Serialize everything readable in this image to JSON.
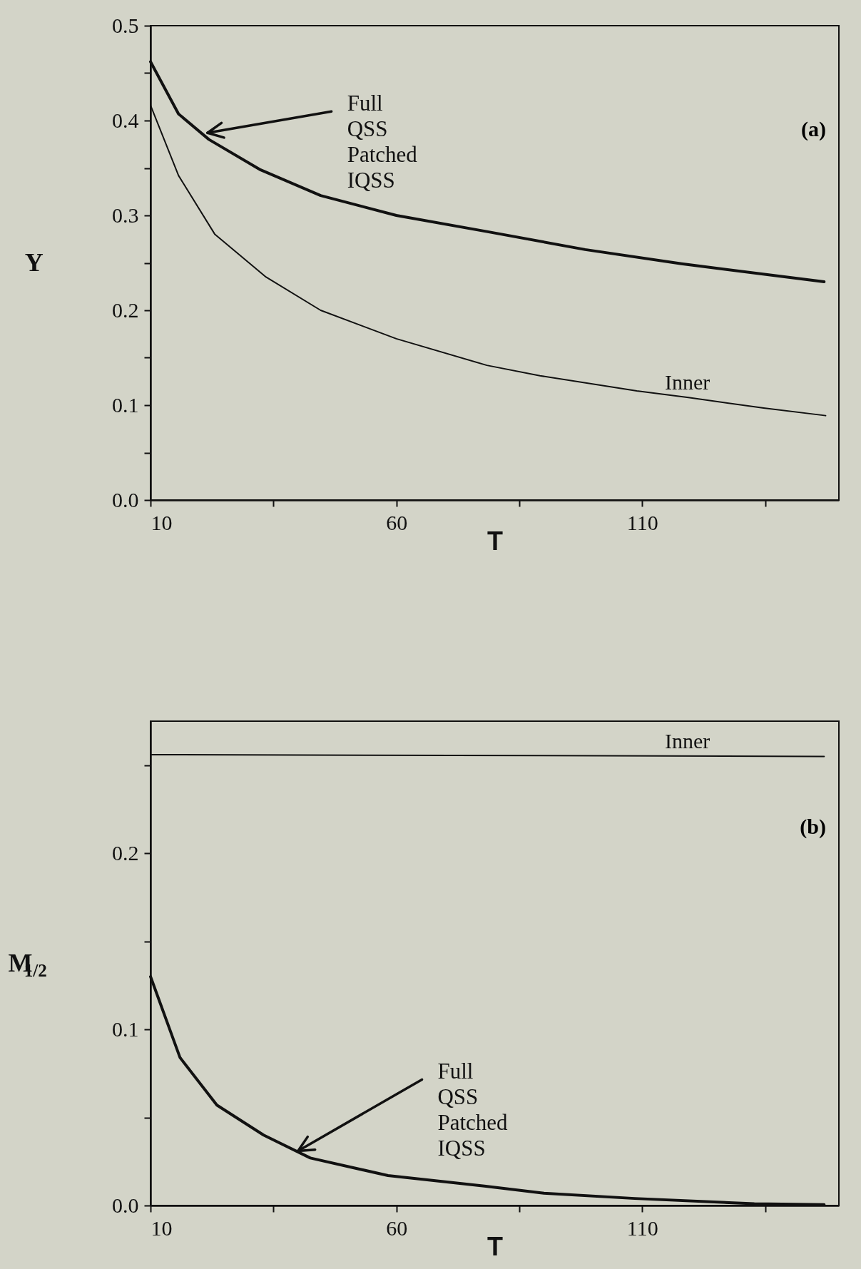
{
  "chart_data": [
    {
      "type": "line",
      "xlabel": "T",
      "ylabel": "Y",
      "xlim": [
        10,
        150
      ],
      "xticks": [
        10,
        {
          "value": 35,
          "label": null
        },
        60,
        {
          "value": 85,
          "label": null
        },
        110,
        {
          "value": 135,
          "label": null
        }
      ],
      "ylim": [
        0,
        0.5
      ],
      "yticks": [
        {
          "value": 0,
          "label": "0.0"
        },
        {
          "value": 0.05,
          "label": null
        },
        0.1,
        {
          "value": 0.15,
          "label": null
        },
        0.2,
        {
          "value": 0.25,
          "label": null
        },
        0.3,
        {
          "value": 0.35,
          "label": null
        },
        0.4,
        {
          "value": 0.45,
          "label": null
        },
        0.5
      ],
      "grid": false,
      "series": [
        {
          "color": "#111111",
          "x": [
            10,
            15.7,
            21.9,
            32.4,
            44.6,
            60,
            78.4,
            98.4,
            118,
            147
          ],
          "values": [
            0.462,
            0.407,
            0.38,
            0.348,
            0.321,
            0.3,
            0.283,
            0.264,
            0.249,
            0.23
          ]
        },
        {
          "name": "Inner",
          "color": "#111111",
          "x": [
            10,
            15.7,
            23.1,
            33.5,
            44.6,
            60,
            78.4,
            89.2,
            108.9,
            119.4,
            134.7,
            147.3
          ],
          "values": [
            0.416,
            0.342,
            0.28,
            0.235,
            0.2,
            0.17,
            0.142,
            0.131,
            0.115,
            0.108,
            0.097,
            0.089
          ]
        }
      ],
      "annotations": [
        {
          "text": "Full QSS Patched IQSS",
          "x": 21.6,
          "y": 0.387
        },
        "(a)"
      ]
    },
    {
      "type": "line",
      "xlabel": "T",
      "ylabel": "M$_{1/2}$",
      "xlim": [
        10,
        150
      ],
      "xticks": [
        10,
        {
          "value": 35,
          "label": null
        },
        60,
        {
          "value": 85,
          "label": null
        },
        110,
        {
          "value": 135,
          "label": null
        }
      ],
      "ylim": [
        0,
        0.275
      ],
      "yticks": [
        {
          "value": 0,
          "label": "0.0"
        },
        {
          "value": 0.05,
          "label": null
        },
        0.1,
        {
          "value": 0.15,
          "label": null
        },
        0.2,
        {
          "value": 0.25,
          "label": null
        }
      ],
      "grid": false,
      "series": [
        {
          "color": "#111111",
          "x": [
            10,
            16,
            23.5,
            33,
            42.5,
            58.3,
            77.9,
            90,
            108.5,
            132.8,
            147
          ],
          "values": [
            0.13,
            0.084,
            0.057,
            0.04,
            0.027,
            0.017,
            0.011,
            0.007,
            0.004,
            0.001,
            0.0005
          ]
        },
        {
          "name": "Inner",
          "color": "#111111",
          "x": [
            10,
            147
          ],
          "values": [
            0.256,
            0.255
          ]
        }
      ],
      "annotations": [
        {
          "text": "Full QSS Patched IQSS",
          "x": 40,
          "y": 0.031
        },
        "(b)"
      ]
    }
  ]
}
